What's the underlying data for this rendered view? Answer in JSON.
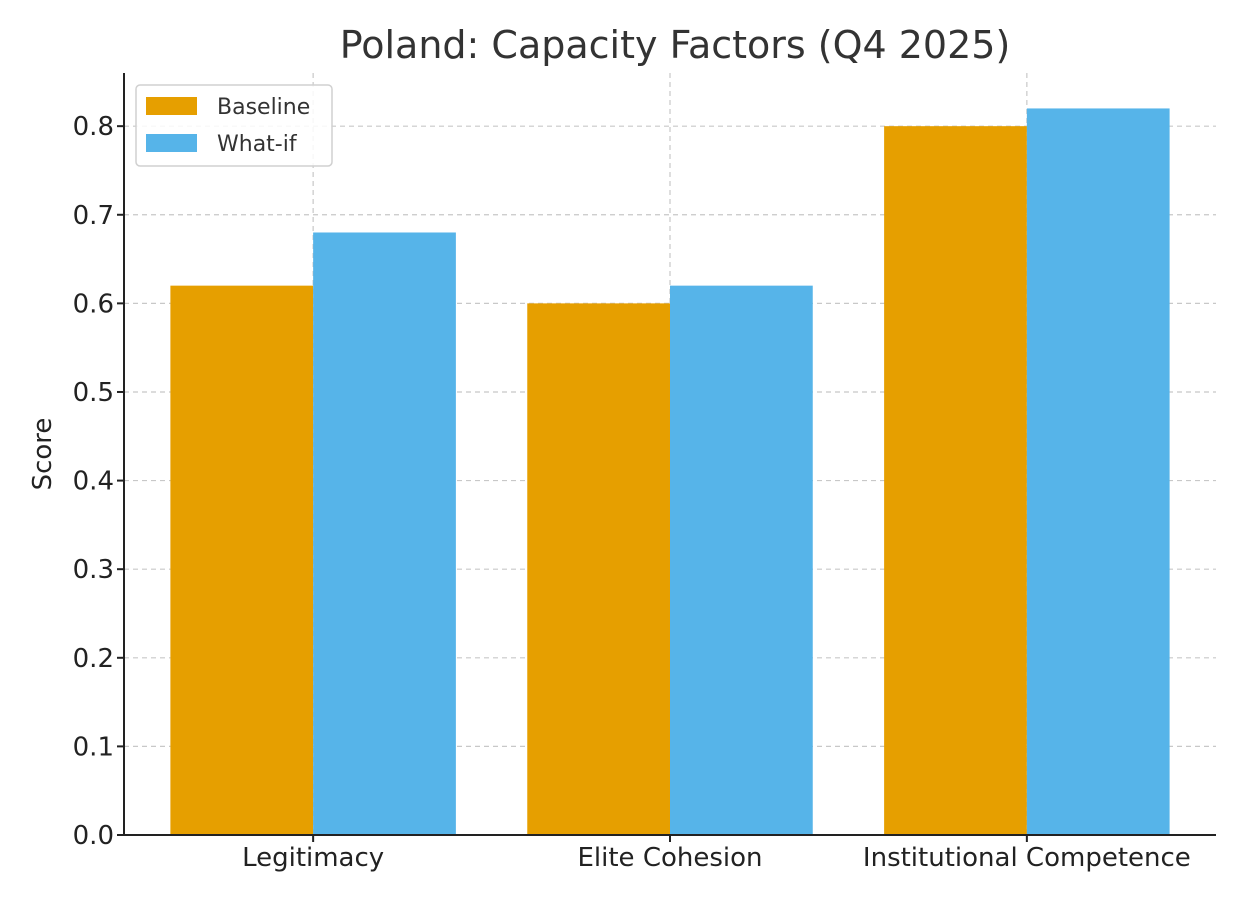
{
  "chart_data": {
    "type": "bar",
    "title": "Poland: Capacity Factors (Q4 2025)",
    "xlabel": "",
    "ylabel": "Score",
    "categories": [
      "Legitimacy",
      "Elite Cohesion",
      "Institutional Competence"
    ],
    "series": [
      {
        "name": "Baseline",
        "color": "#E69F00",
        "values": [
          0.62,
          0.6,
          0.8
        ]
      },
      {
        "name": "What-if",
        "color": "#56B4E9",
        "values": [
          0.68,
          0.62,
          0.82
        ]
      }
    ],
    "ylim": [
      0,
      0.86
    ],
    "yticks": [
      "0.0",
      "0.1",
      "0.2",
      "0.3",
      "0.4",
      "0.5",
      "0.6",
      "0.7",
      "0.8"
    ],
    "grid": true,
    "legend_position": "top-left"
  }
}
